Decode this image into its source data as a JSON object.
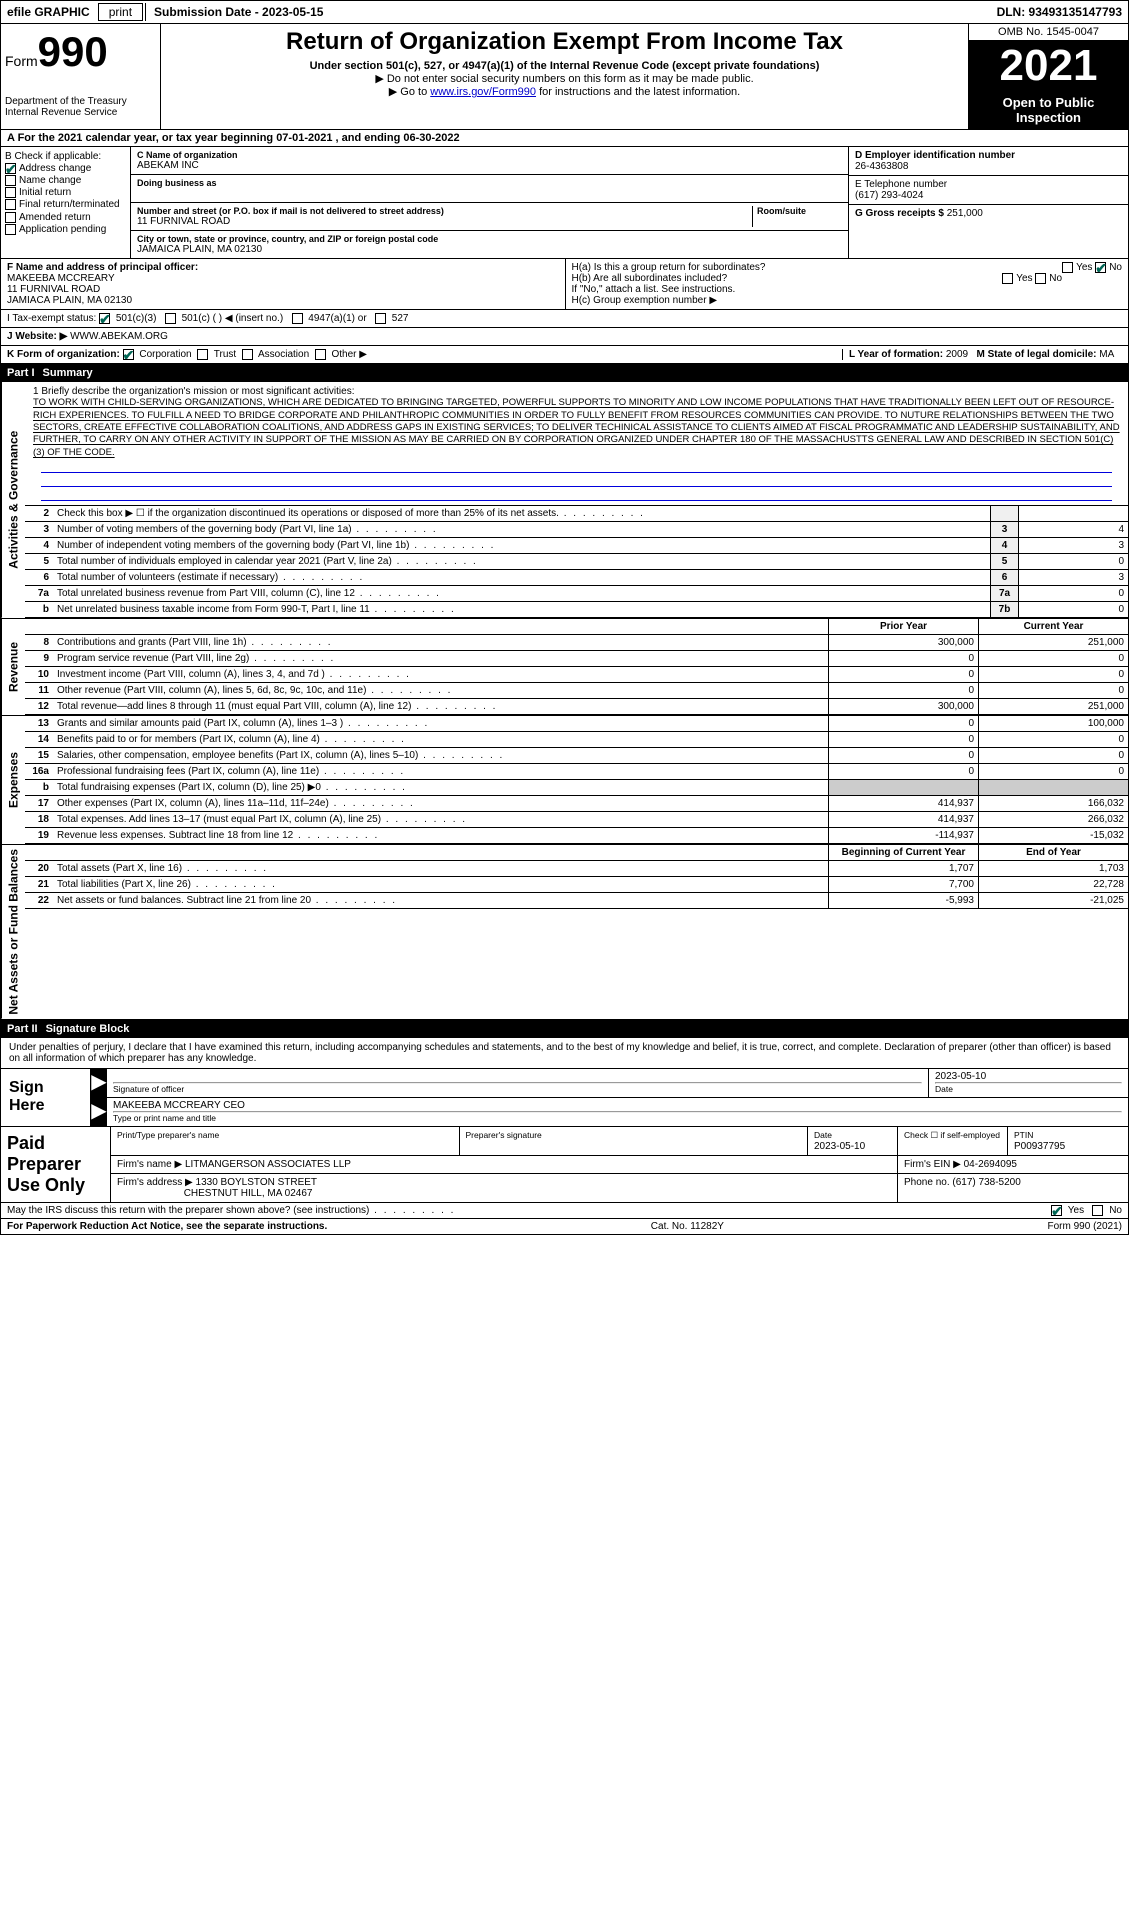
{
  "top_bar": {
    "efile": "efile GRAPHIC",
    "print": "print",
    "submission": "Submission Date - 2023-05-15",
    "dln": "DLN: 93493135147793"
  },
  "header": {
    "form_prefix": "Form",
    "form_num": "990",
    "dept": "Department of the Treasury Internal Revenue Service",
    "title": "Return of Organization Exempt From Income Tax",
    "sub1": "Under section 501(c), 527, or 4947(a)(1) of the Internal Revenue Code (except private foundations)",
    "sub2": "▶ Do not enter social security numbers on this form as it may be made public.",
    "sub3_pre": "▶ Go to ",
    "sub3_link": "www.irs.gov/Form990",
    "sub3_post": " for instructions and the latest information.",
    "omb": "OMB No. 1545-0047",
    "year": "2021",
    "open": "Open to Public Inspection"
  },
  "row_a": "A For the 2021 calendar year, or tax year beginning 07-01-2021  , and ending 06-30-2022",
  "box_b": {
    "title": "B Check if applicable:",
    "items": [
      "Address change",
      "Name change",
      "Initial return",
      "Final return/terminated",
      "Amended return",
      "Application pending"
    ]
  },
  "box_c": {
    "name_lbl": "C Name of organization",
    "name": "ABEKAM INC",
    "dba_lbl": "Doing business as",
    "addr_lbl": "Number and street (or P.O. box if mail is not delivered to street address)",
    "room_lbl": "Room/suite",
    "addr": "11 FURNIVAL ROAD",
    "city_lbl": "City or town, state or province, country, and ZIP or foreign postal code",
    "city": "JAMAICA PLAIN, MA  02130"
  },
  "box_d": {
    "ein_lbl": "D Employer identification number",
    "ein": "26-4363808",
    "phone_lbl": "E Telephone number",
    "phone": "(617) 293-4024",
    "gross_lbl": "G Gross receipts $",
    "gross": "251,000"
  },
  "box_f": {
    "lbl": "F Name and address of principal officer:",
    "name": "MAKEEBA MCCREARY",
    "addr1": "11 FURNIVAL ROAD",
    "addr2": "JAMIACA PLAIN, MA  02130"
  },
  "box_h": {
    "ha": "H(a)  Is this a group return for subordinates?",
    "hb": "H(b)  Are all subordinates included?",
    "hb_note": "If \"No,\" attach a list. See instructions.",
    "hc": "H(c)  Group exemption number ▶"
  },
  "row_i": {
    "lbl": "I   Tax-exempt status:",
    "opts": [
      "501(c)(3)",
      "501(c) (  ) ◀ (insert no.)",
      "4947(a)(1) or",
      "527"
    ]
  },
  "row_j": {
    "lbl": "J   Website: ▶",
    "val": " WWW.ABEKAM.ORG"
  },
  "row_k": {
    "lbl": "K Form of organization:",
    "opts": [
      "Corporation",
      "Trust",
      "Association",
      "Other ▶"
    ]
  },
  "row_l": {
    "lbl": "L Year of formation: ",
    "val": "2009",
    "m_lbl": "M State of legal domicile: ",
    "m_val": "MA"
  },
  "part1": {
    "num": "Part I",
    "title": "Summary"
  },
  "mission": {
    "lbl": "1   Briefly describe the organization's mission or most significant activities:",
    "text": "TO WORK WITH CHILD-SERVING ORGANIZATIONS, WHICH ARE DEDICATED TO BRINGING TARGETED, POWERFUL SUPPORTS TO MINORITY AND LOW INCOME POPULATIONS THAT HAVE TRADITIONALLY BEEN LEFT OUT OF RESOURCE-RICH EXPERIENCES. TO FULFILL A NEED TO BRIDGE CORPORATE AND PHILANTHROPIC COMMUNITIES IN ORDER TO FULLY BENEFIT FROM RESOURCES COMMUNITIES CAN PROVIDE. TO NUTURE RELATIONSHIPS BETWEEN THE TWO SECTORS, CREATE EFFECTIVE COLLABORATION COALITIONS, AND ADDRESS GAPS IN EXISTING SERVICES; TO DELIVER TECHINICAL ASSISTANCE TO CLIENTS AIMED AT FISCAL PROGRAMMATIC AND LEADERSHIP SUSTAINABILITY, AND FURTHER, TO CARRY ON ANY OTHER ACTIVITY IN SUPPORT OF THE MISSION AS MAY BE CARRIED ON BY CORPORATION ORGANIZED UNDER CHAPTER 180 OF THE MASSACHUSTTS GENERAL LAW AND DESCRIBED IN SECTION 501(C) (3) OF THE CODE."
  },
  "gov_rows": [
    {
      "n": "2",
      "desc": "Check this box ▶ ☐ if the organization discontinued its operations or disposed of more than 25% of its net assets.",
      "box": "",
      "val": ""
    },
    {
      "n": "3",
      "desc": "Number of voting members of the governing body (Part VI, line 1a)",
      "box": "3",
      "val": "4"
    },
    {
      "n": "4",
      "desc": "Number of independent voting members of the governing body (Part VI, line 1b)",
      "box": "4",
      "val": "3"
    },
    {
      "n": "5",
      "desc": "Total number of individuals employed in calendar year 2021 (Part V, line 2a)",
      "box": "5",
      "val": "0"
    },
    {
      "n": "6",
      "desc": "Total number of volunteers (estimate if necessary)",
      "box": "6",
      "val": "3"
    },
    {
      "n": "7a",
      "desc": "Total unrelated business revenue from Part VIII, column (C), line 12",
      "box": "7a",
      "val": "0"
    },
    {
      "n": "b",
      "desc": "Net unrelated business taxable income from Form 990-T, Part I, line 11",
      "box": "7b",
      "val": "0"
    }
  ],
  "fin_header": {
    "py": "Prior Year",
    "cy": "Current Year"
  },
  "revenue_rows": [
    {
      "n": "8",
      "desc": "Contributions and grants (Part VIII, line 1h)",
      "py": "300,000",
      "cy": "251,000"
    },
    {
      "n": "9",
      "desc": "Program service revenue (Part VIII, line 2g)",
      "py": "0",
      "cy": "0"
    },
    {
      "n": "10",
      "desc": "Investment income (Part VIII, column (A), lines 3, 4, and 7d )",
      "py": "0",
      "cy": "0"
    },
    {
      "n": "11",
      "desc": "Other revenue (Part VIII, column (A), lines 5, 6d, 8c, 9c, 10c, and 11e)",
      "py": "0",
      "cy": "0"
    },
    {
      "n": "12",
      "desc": "Total revenue—add lines 8 through 11 (must equal Part VIII, column (A), line 12)",
      "py": "300,000",
      "cy": "251,000"
    }
  ],
  "expense_rows": [
    {
      "n": "13",
      "desc": "Grants and similar amounts paid (Part IX, column (A), lines 1–3 )",
      "py": "0",
      "cy": "100,000"
    },
    {
      "n": "14",
      "desc": "Benefits paid to or for members (Part IX, column (A), line 4)",
      "py": "0",
      "cy": "0"
    },
    {
      "n": "15",
      "desc": "Salaries, other compensation, employee benefits (Part IX, column (A), lines 5–10)",
      "py": "0",
      "cy": "0"
    },
    {
      "n": "16a",
      "desc": "Professional fundraising fees (Part IX, column (A), line 11e)",
      "py": "0",
      "cy": "0"
    },
    {
      "n": "b",
      "desc": "Total fundraising expenses (Part IX, column (D), line 25) ▶0",
      "py": "",
      "cy": "",
      "shaded": true
    },
    {
      "n": "17",
      "desc": "Other expenses (Part IX, column (A), lines 11a–11d, 11f–24e)",
      "py": "414,937",
      "cy": "166,032"
    },
    {
      "n": "18",
      "desc": "Total expenses. Add lines 13–17 (must equal Part IX, column (A), line 25)",
      "py": "414,937",
      "cy": "266,032"
    },
    {
      "n": "19",
      "desc": "Revenue less expenses. Subtract line 18 from line 12",
      "py": "-114,937",
      "cy": "-15,032"
    }
  ],
  "net_header": {
    "py": "Beginning of Current Year",
    "cy": "End of Year"
  },
  "net_rows": [
    {
      "n": "20",
      "desc": "Total assets (Part X, line 16)",
      "py": "1,707",
      "cy": "1,703"
    },
    {
      "n": "21",
      "desc": "Total liabilities (Part X, line 26)",
      "py": "7,700",
      "cy": "22,728"
    },
    {
      "n": "22",
      "desc": "Net assets or fund balances. Subtract line 21 from line 20",
      "py": "-5,993",
      "cy": "-21,025"
    }
  ],
  "side_labels": {
    "gov": "Activities & Governance",
    "rev": "Revenue",
    "exp": "Expenses",
    "net": "Net Assets or Fund Balances"
  },
  "part2": {
    "num": "Part II",
    "title": "Signature Block"
  },
  "sig_intro": "Under penalties of perjury, I declare that I have examined this return, including accompanying schedules and statements, and to the best of my knowledge and belief, it is true, correct, and complete. Declaration of preparer (other than officer) is based on all information of which preparer has any knowledge.",
  "sign_here": {
    "label": "Sign Here",
    "sig_lbl": "Signature of officer",
    "date": "2023-05-10",
    "date_lbl": "Date",
    "name": "MAKEEBA MCCREARY CEO",
    "name_lbl": "Type or print name and title"
  },
  "paid_prep": {
    "label": "Paid Preparer Use Only",
    "h_name": "Print/Type preparer's name",
    "h_sig": "Preparer's signature",
    "h_date": "Date",
    "h_date_v": "2023-05-10",
    "h_check": "Check ☐ if self-employed",
    "h_ptin": "PTIN",
    "ptin": "P00937795",
    "firm_lbl": "Firm's name    ▶",
    "firm": "LITMANGERSON ASSOCIATES LLP",
    "ein_lbl": "Firm's EIN ▶",
    "ein": "04-2694095",
    "addr_lbl": "Firm's address ▶",
    "addr1": "1330 BOYLSTON STREET",
    "addr2": "CHESTNUT HILL, MA  02467",
    "phone_lbl": "Phone no.",
    "phone": "(617) 738-5200"
  },
  "discuss": {
    "q": "May the IRS discuss this return with the preparer shown above? (see instructions)",
    "yes": "Yes",
    "no": "No"
  },
  "footer": {
    "left": "For Paperwork Reduction Act Notice, see the separate instructions.",
    "center": "Cat. No. 11282Y",
    "right": "Form 990 (2021)"
  },
  "yes": "Yes",
  "no": "No"
}
